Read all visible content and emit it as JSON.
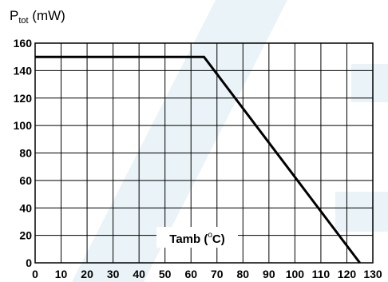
{
  "chart_data": {
    "type": "line",
    "ylabel": {
      "main": "P",
      "sub": "tot",
      "unit": " (mW)"
    },
    "xlabel": {
      "main": "Tamb (",
      "sup": "o",
      "unit": "C)"
    },
    "xlim": [
      0,
      130
    ],
    "ylim": [
      0,
      160
    ],
    "xticks": [
      0,
      10,
      20,
      30,
      40,
      50,
      60,
      70,
      80,
      90,
      100,
      110,
      120,
      130
    ],
    "yticks": [
      0,
      20,
      40,
      60,
      80,
      100,
      120,
      140,
      160
    ],
    "grid": true,
    "series": [
      {
        "x": [
          0,
          65,
          125
        ],
        "y": [
          150,
          150,
          0
        ]
      }
    ]
  }
}
